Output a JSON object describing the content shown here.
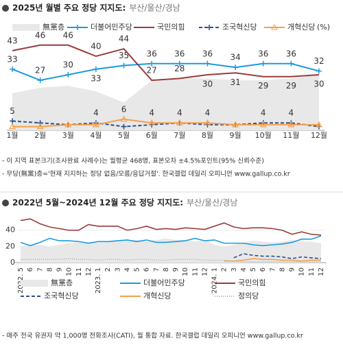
{
  "chart_data": [
    {
      "type": "line",
      "title": "2025년 월별 주요 정당 지지도:",
      "subtitle": "부산/울산/경남",
      "unit": "(%)",
      "categories": [
        "1월",
        "2월",
        "3월",
        "4월",
        "5월",
        "6월",
        "7월",
        "8월",
        "9월",
        "10월",
        "11월",
        "12월"
      ],
      "ylim": [
        0,
        50
      ],
      "series": [
        {
          "name": "無黨층",
          "kind": "area",
          "color": "#e8e8e8",
          "values": [
            20,
            23,
            24,
            21,
            15,
            27,
            28,
            28,
            27,
            27,
            28,
            30
          ]
        },
        {
          "name": "더불어민주당",
          "kind": "line",
          "marker": "cross",
          "color": "#1a9ae0",
          "values": [
            33,
            27,
            30,
            33,
            35,
            36,
            36,
            36,
            34,
            36,
            36,
            32
          ],
          "value_labels": [
            "33",
            "27",
            "30",
            "33",
            "35",
            "36",
            "36",
            "36",
            "34",
            "36",
            "36",
            "32"
          ]
        },
        {
          "name": "국민의힘",
          "kind": "line",
          "color": "#9b3a3a",
          "values": [
            43,
            46,
            46,
            40,
            44,
            27,
            28,
            30,
            31,
            29,
            29,
            30
          ],
          "value_labels": [
            "43",
            "46",
            "46",
            "40",
            "44",
            "27",
            "28",
            "30",
            "31",
            "29",
            "29",
            "30"
          ]
        },
        {
          "name": "조국혁신당",
          "kind": "line",
          "dash": "5,3",
          "marker": "cross",
          "color": "#2c4f8a",
          "values": [
            5,
            4,
            3,
            4,
            2,
            3,
            4,
            3,
            3,
            4,
            4,
            2
          ],
          "value_labels": [
            "5",
            null,
            null,
            "4",
            null,
            null,
            "4",
            null,
            null,
            "4",
            "4",
            null
          ]
        },
        {
          "name": "개혁신당",
          "kind": "line",
          "marker": "triangle",
          "color": "#f5a04a",
          "values": [
            2,
            2,
            3,
            3,
            6,
            4,
            4,
            4,
            3,
            3,
            3,
            3
          ],
          "value_labels": [
            null,
            null,
            null,
            null,
            "6",
            "4",
            null,
            "4",
            null,
            null,
            null,
            null
          ]
        }
      ],
      "notes": [
        "- 이 지역 표본크기(조사완료 사례수)는 월평균 468명, 표본오차 ±4.5%포인트(95% 신뢰수준)",
        "- 무당(無黨)층='현재 지지하는 정당 없음/모름/응답거절'. 한국갤럽 데일리 오피니언 www.gallup.co.kr"
      ]
    },
    {
      "type": "line",
      "title": "2022년 5월~2024년 12월 주요 정당 지지도:",
      "subtitle": "부산/울산/경남",
      "categories": [
        "2022. 5",
        "6",
        "7",
        "8",
        "9",
        "10",
        "11",
        "12",
        "2023. 1",
        "2",
        "3",
        "4",
        "5",
        "6",
        "7",
        "8",
        "9",
        "10",
        "11",
        "12",
        "2024. 1",
        "2",
        "3",
        "4",
        "5",
        "6",
        "7",
        "8",
        "9",
        "10",
        "11",
        "12"
      ],
      "ylim": [
        0,
        55
      ],
      "yticks": [
        0,
        20,
        40
      ],
      "grid": true,
      "series": [
        {
          "name": "無黨층",
          "kind": "area",
          "color": "#e8e8e8",
          "values": [
            20,
            22,
            22,
            20,
            22,
            24,
            25,
            25,
            25,
            25,
            27,
            28,
            28,
            26,
            28,
            30,
            28,
            28,
            26,
            28,
            22,
            20,
            22,
            25,
            27,
            26,
            25,
            26,
            28,
            26,
            26,
            24
          ]
        },
        {
          "name": "더불어민주당",
          "kind": "line",
          "color": "#1a9ae0",
          "values": [
            25,
            21,
            25,
            30,
            27,
            27,
            26,
            24,
            26,
            26,
            27,
            28,
            26,
            28,
            25,
            25,
            26,
            27,
            30,
            27,
            28,
            24,
            24,
            24,
            22,
            21,
            22,
            23,
            25,
            29,
            29,
            33
          ]
        },
        {
          "name": "국민의힘",
          "kind": "line",
          "color": "#9b3a3a",
          "values": [
            52,
            54,
            48,
            44,
            42,
            40,
            40,
            47,
            45,
            45,
            45,
            40,
            42,
            45,
            41,
            42,
            41,
            43,
            42,
            41,
            45,
            49,
            44,
            42,
            43,
            43,
            42,
            40,
            35,
            38,
            35,
            34
          ]
        },
        {
          "name": "조국혁신당",
          "kind": "line",
          "dash": "5,3",
          "color": "#2c4f8a",
          "values": [
            null,
            null,
            null,
            null,
            null,
            null,
            null,
            null,
            null,
            null,
            null,
            null,
            null,
            null,
            null,
            null,
            null,
            null,
            null,
            null,
            null,
            null,
            6,
            11,
            9,
            8,
            8,
            7,
            5,
            7,
            6,
            5
          ]
        },
        {
          "name": "개혁신당",
          "kind": "line",
          "color": "#f5a04a",
          "values": [
            null,
            null,
            null,
            null,
            null,
            null,
            null,
            null,
            null,
            null,
            null,
            null,
            null,
            null,
            null,
            null,
            null,
            null,
            null,
            null,
            null,
            2,
            2,
            3,
            5,
            4,
            4,
            3,
            3,
            2,
            3,
            3
          ]
        },
        {
          "name": "정의당",
          "kind": "line",
          "dash": "1,2",
          "color": "#aaaaaa",
          "values": [
            4,
            4,
            4,
            4,
            4,
            5,
            4,
            4,
            3,
            4,
            4,
            3,
            4,
            4,
            3,
            3,
            4,
            4,
            4,
            3,
            3,
            3,
            2,
            1,
            1,
            1,
            1,
            1,
            1,
            1,
            1,
            1
          ]
        }
      ],
      "notes": [
        "- 매주 전국 유권자 약 1,000명 전화조사(CATI), 월 통합 자료. 한국갤럽 데일리 오피니언 www.gallup.co.kr"
      ]
    }
  ]
}
